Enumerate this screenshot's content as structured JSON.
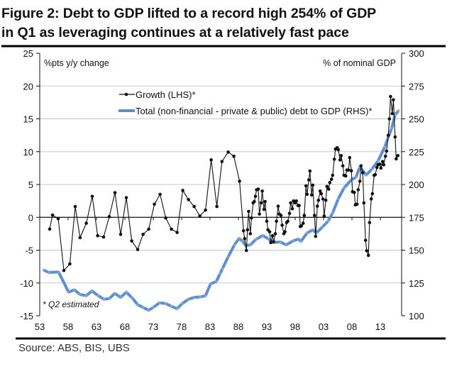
{
  "title_lines": [
    "Figure 2: Debt to GDP lifted to a record high 254% of GDP",
    "in Q1 as leveraging continues at a relatively fast pace"
  ],
  "source": "Source: ABS, BIS, UBS",
  "chart_data": {
    "type": "line",
    "title": "Figure 2: Debt to GDP lifted to a record high 254% of GDP in Q1 as leveraging continues at a relatively fast pace",
    "left_axis_label": "%pts y/y change",
    "right_axis_label": "% of nominal GDP",
    "note": "* Q2 estimated",
    "xlim": [
      1953,
      2016.75
    ],
    "ylim_left": [
      -15,
      25
    ],
    "ylim_right": [
      100,
      300
    ],
    "left_ticks": [
      "25",
      "20",
      "15",
      "10",
      "5",
      "0",
      "-5",
      "-10",
      "-15"
    ],
    "right_ticks": [
      "300",
      "275",
      "250",
      "225",
      "200",
      "175",
      "150",
      "125",
      "100"
    ],
    "x_ticks": [
      {
        "year": 1953,
        "label": "53"
      },
      {
        "year": 1958,
        "label": "58"
      },
      {
        "year": 1963,
        "label": "63"
      },
      {
        "year": 1968,
        "label": "68"
      },
      {
        "year": 1973,
        "label": "73"
      },
      {
        "year": 1978,
        "label": "78"
      },
      {
        "year": 1983,
        "label": "83"
      },
      {
        "year": 1988,
        "label": "88"
      },
      {
        "year": 1993,
        "label": "93"
      },
      {
        "year": 1998,
        "label": "98"
      },
      {
        "year": 2003,
        "label": "03"
      },
      {
        "year": 2008,
        "label": "08"
      },
      {
        "year": 2013,
        "label": "13"
      }
    ],
    "grid": "horizontal",
    "legend_position": "top-center",
    "series": [
      {
        "name": "Growth (LHS)*",
        "axis": "left",
        "color": "#111111",
        "points": [
          [
            1954.75,
            -1.8
          ],
          [
            1955.25,
            0.35
          ],
          [
            1956.25,
            -0.2
          ],
          [
            1957.25,
            -8.1
          ],
          [
            1958.3,
            -7.1
          ],
          [
            1959.25,
            1.65
          ],
          [
            1960.1,
            -3.1
          ],
          [
            1961.2,
            -0.9
          ],
          [
            1962.25,
            3.2
          ],
          [
            1963.2,
            -2.8
          ],
          [
            1964.25,
            -3.0
          ],
          [
            1965.25,
            0.1
          ],
          [
            1966.25,
            3.75
          ],
          [
            1967.25,
            -2.6
          ],
          [
            1968.25,
            3.0
          ],
          [
            1969.2,
            -3.6
          ],
          [
            1970.25,
            -4.9
          ],
          [
            1971.2,
            -2.6
          ],
          [
            1972.2,
            -1.8
          ],
          [
            1973.2,
            2.0
          ],
          [
            1974.2,
            3.5
          ],
          [
            1975.2,
            -0.1
          ],
          [
            1976.2,
            -1.8
          ],
          [
            1977.2,
            -2.3
          ],
          [
            1978.2,
            4.1
          ],
          [
            1979.2,
            2.7
          ],
          [
            1980.2,
            1.65
          ],
          [
            1981.2,
            0.2
          ],
          [
            1982.2,
            1.1
          ],
          [
            1983.2,
            8.75
          ],
          [
            1984.2,
            1.65
          ],
          [
            1985.1,
            8.5
          ],
          [
            1986.2,
            9.95
          ],
          [
            1987.2,
            9.3
          ],
          [
            1988.2,
            5.5
          ],
          [
            1988.9,
            -2.05
          ],
          [
            1989.1,
            -3.25
          ],
          [
            1989.4,
            -5.05
          ],
          [
            1989.6,
            -1.9
          ],
          [
            1989.8,
            0.9
          ],
          [
            1990.1,
            -2.5
          ],
          [
            1990.3,
            -0.1
          ],
          [
            1990.6,
            2.2
          ],
          [
            1990.8,
            2.4
          ],
          [
            1991.0,
            3.2
          ],
          [
            1991.2,
            4.2
          ],
          [
            1991.5,
            4.3
          ],
          [
            1991.7,
            0.5
          ],
          [
            1992.0,
            2.2
          ],
          [
            1992.2,
            4.0
          ],
          [
            1992.5,
            1.2
          ],
          [
            1992.7,
            2.4
          ],
          [
            1993.0,
            -0.6
          ],
          [
            1993.2,
            -1.9
          ],
          [
            1993.5,
            -2.2
          ],
          [
            1993.7,
            -3.85
          ],
          [
            1994.0,
            -2.8
          ],
          [
            1994.2,
            -3.7
          ],
          [
            1994.5,
            -2.5
          ],
          [
            1994.7,
            -0.6
          ],
          [
            1995.0,
            1.7
          ],
          [
            1995.2,
            0.5
          ],
          [
            1995.5,
            0.3
          ],
          [
            1995.7,
            -1.2
          ],
          [
            1996.0,
            -2.5
          ],
          [
            1996.2,
            -2.2
          ],
          [
            1996.5,
            -0.8
          ],
          [
            1996.7,
            -0.6
          ],
          [
            1997.0,
            0.6
          ],
          [
            1997.2,
            2.2
          ],
          [
            1997.5,
            1.3
          ],
          [
            1997.7,
            2.5
          ],
          [
            1998.0,
            2.2
          ],
          [
            1998.2,
            2.5
          ],
          [
            1998.5,
            1.8
          ],
          [
            1998.7,
            1.8
          ],
          [
            1998.9,
            -1.4
          ],
          [
            1999.1,
            -1.3
          ],
          [
            1999.4,
            -0.9
          ],
          [
            1999.6,
            0.3
          ],
          [
            1999.9,
            4.8
          ],
          [
            2000.1,
            3.5
          ],
          [
            2000.4,
            5.7
          ],
          [
            2000.6,
            7.05
          ],
          [
            2000.9,
            3.4
          ],
          [
            2001.1,
            4.9
          ],
          [
            2001.4,
            0.3
          ],
          [
            2001.6,
            -2.9
          ],
          [
            2001.9,
            1.7
          ],
          [
            2002.1,
            2.6
          ],
          [
            2002.4,
            4.0
          ],
          [
            2002.6,
            3.6
          ],
          [
            2002.9,
            2.8
          ],
          [
            2003.1,
            0.2
          ],
          [
            2003.4,
            2.6
          ],
          [
            2003.6,
            4.7
          ],
          [
            2003.9,
            4.3
          ],
          [
            2004.1,
            5.3
          ],
          [
            2004.4,
            5.8
          ],
          [
            2004.6,
            6.4
          ],
          [
            2004.9,
            8.85
          ],
          [
            2005.1,
            10.4
          ],
          [
            2005.4,
            10.6
          ],
          [
            2005.6,
            10.3
          ],
          [
            2005.9,
            8.75
          ],
          [
            2006.1,
            9.4
          ],
          [
            2006.4,
            7.85
          ],
          [
            2006.6,
            6.4
          ],
          [
            2006.9,
            6.3
          ],
          [
            2007.1,
            7.2
          ],
          [
            2007.4,
            7.2
          ],
          [
            2007.6,
            9.1
          ],
          [
            2007.9,
            7.1
          ],
          [
            2008.1,
            3.9
          ],
          [
            2008.4,
            3.8
          ],
          [
            2008.6,
            1.9
          ],
          [
            2008.9,
            2.0
          ],
          [
            2009.1,
            4.2
          ],
          [
            2009.4,
            5.5
          ],
          [
            2009.6,
            7.85
          ],
          [
            2009.9,
            6.8
          ],
          [
            2010.1,
            2.2
          ],
          [
            2010.4,
            -3.5
          ],
          [
            2010.6,
            -5.1
          ],
          [
            2010.9,
            -5.8
          ],
          [
            2011.1,
            -0.8
          ],
          [
            2011.4,
            2.8
          ],
          [
            2011.6,
            3.6
          ],
          [
            2011.9,
            6.4
          ],
          [
            2012.1,
            6.5
          ],
          [
            2012.4,
            7.6
          ],
          [
            2012.6,
            8.0
          ],
          [
            2012.9,
            8.1
          ],
          [
            2013.1,
            7.5
          ],
          [
            2013.4,
            8.5
          ],
          [
            2013.6,
            8.0
          ],
          [
            2013.9,
            9.3
          ],
          [
            2014.1,
            10.1
          ],
          [
            2014.4,
            12.5
          ],
          [
            2014.6,
            15.0
          ],
          [
            2014.8,
            18.4
          ],
          [
            2015.1,
            15.8
          ],
          [
            2015.3,
            17.9
          ],
          [
            2015.6,
            12.25
          ],
          [
            2015.8,
            8.9
          ],
          [
            2016.1,
            9.4
          ]
        ]
      },
      {
        "name": "Total (non-financial - private & public) debt to GDP (RHS)*",
        "axis": "right",
        "color": "#5b8fd0",
        "points": [
          [
            1953.7,
            134.8
          ],
          [
            1954.6,
            133
          ],
          [
            1956.3,
            133.4
          ],
          [
            1958.1,
            118
          ],
          [
            1959.1,
            119.8
          ],
          [
            1960.1,
            116.2
          ],
          [
            1961.2,
            115.3
          ],
          [
            1962.2,
            118.9
          ],
          [
            1963.3,
            115.3
          ],
          [
            1964.3,
            112.6
          ],
          [
            1965.3,
            113.2
          ],
          [
            1966.2,
            117.1
          ],
          [
            1967.25,
            114
          ],
          [
            1968.25,
            118
          ],
          [
            1969.3,
            113.5
          ],
          [
            1970.25,
            108.5
          ],
          [
            1971.2,
            106.4
          ],
          [
            1972.2,
            104.2
          ],
          [
            1973.0,
            106.4
          ],
          [
            1974.1,
            109.9
          ],
          [
            1975.2,
            109.3
          ],
          [
            1976.2,
            107.2
          ],
          [
            1977.2,
            105.4
          ],
          [
            1978.1,
            109.3
          ],
          [
            1979.2,
            112.6
          ],
          [
            1980.2,
            114
          ],
          [
            1981.3,
            114.4
          ],
          [
            1982.2,
            115.3
          ],
          [
            1983.1,
            124.3
          ],
          [
            1984.1,
            126.1
          ],
          [
            1984.8,
            132.4
          ],
          [
            1985.2,
            136
          ],
          [
            1986.2,
            145
          ],
          [
            1987.3,
            154
          ],
          [
            1988.1,
            158.9
          ],
          [
            1988.7,
            157
          ],
          [
            1989.3,
            153.5
          ],
          [
            1990.1,
            154
          ],
          [
            1991.1,
            158.2
          ],
          [
            1992.3,
            161.2
          ],
          [
            1993.3,
            158.5
          ],
          [
            1994.1,
            155.8
          ],
          [
            1995.4,
            156.2
          ],
          [
            1996.4,
            154
          ],
          [
            1997.6,
            157
          ],
          [
            1998.6,
            158.5
          ],
          [
            1999.0,
            156.6
          ],
          [
            2000.1,
            163.1
          ],
          [
            2001.1,
            165.4
          ],
          [
            2001.7,
            163.1
          ],
          [
            2002.8,
            167.6
          ],
          [
            2003.8,
            172.1
          ],
          [
            2004.6,
            178.4
          ],
          [
            2005.6,
            189.2
          ],
          [
            2006.6,
            197.3
          ],
          [
            2007.9,
            203.6
          ],
          [
            2008.7,
            205.4
          ],
          [
            2009.4,
            213.5
          ],
          [
            2010.5,
            207.2
          ],
          [
            2011.5,
            211.7
          ],
          [
            2012.6,
            218
          ],
          [
            2013.8,
            228.8
          ],
          [
            2014.3,
            235
          ],
          [
            2015.0,
            242.7
          ],
          [
            2015.6,
            253.1
          ],
          [
            2016.2,
            256.2
          ]
        ]
      }
    ]
  }
}
